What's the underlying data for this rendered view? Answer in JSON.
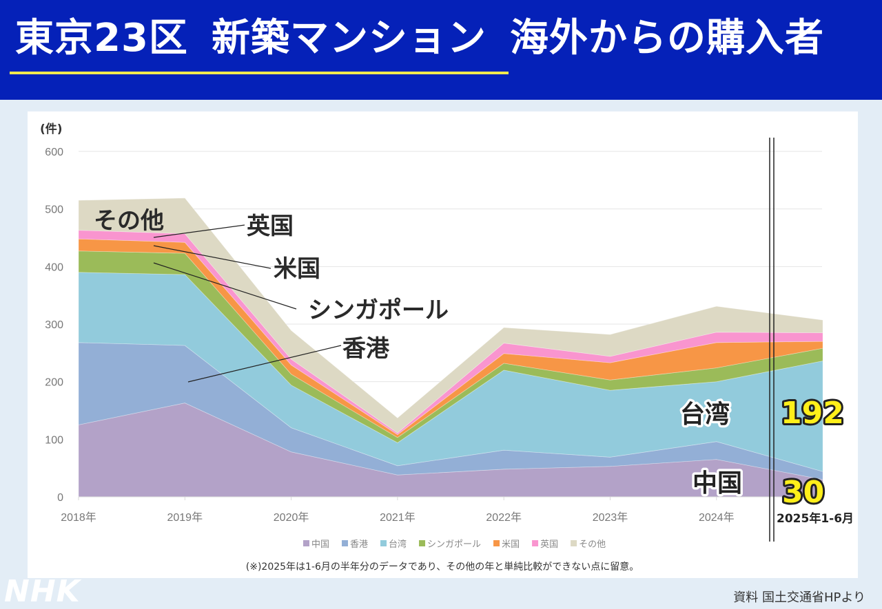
{
  "header": {
    "title_part1": "東京23区",
    "title_part2": "新築マンション",
    "title_part3": "海外からの購入者"
  },
  "footer": {
    "logo": "NHK",
    "source": "資料 国土交通省HPより"
  },
  "chart_data": {
    "type": "area",
    "stacked": true,
    "title": "東京23区 新築マンション 海外からの購入者",
    "ylabel": "(件)",
    "xlabel": "",
    "ylim": [
      0,
      600
    ],
    "yticks": [
      "0",
      "100",
      "200",
      "300",
      "400",
      "500",
      "600"
    ],
    "categories": [
      "2018年",
      "2019年",
      "2020年",
      "2021年",
      "2022年",
      "2023年",
      "2024年",
      "2025年1-6月"
    ],
    "grid": true,
    "legend_position": "bottom",
    "series": [
      {
        "name": "中国",
        "color": "#b3a2c8",
        "values": [
          125,
          163,
          78,
          38,
          48,
          53,
          65,
          30
        ]
      },
      {
        "name": "香港",
        "color": "#93afd6",
        "values": [
          143,
          100,
          42,
          16,
          33,
          16,
          31,
          14
        ]
      },
      {
        "name": "台湾",
        "color": "#92cbdc",
        "values": [
          122,
          123,
          74,
          40,
          139,
          116,
          104,
          192
        ]
      },
      {
        "name": "シンガポール",
        "color": "#9bbb59",
        "values": [
          37,
          37,
          19,
          9,
          12,
          18,
          24,
          22
        ]
      },
      {
        "name": "米国",
        "color": "#f79646",
        "values": [
          21,
          19,
          16,
          5,
          17,
          30,
          44,
          12
        ]
      },
      {
        "name": "英国",
        "color": "#f995cf",
        "values": [
          15,
          15,
          10,
          3,
          18,
          11,
          18,
          15
        ]
      },
      {
        "name": "その他",
        "color": "#ddd9c4",
        "values": [
          52,
          62,
          50,
          26,
          27,
          38,
          45,
          22
        ]
      }
    ],
    "annotations": {
      "callouts": [
        "その他",
        "英国",
        "米国",
        "シンガポール",
        "香港"
      ],
      "taiwan_label": "台湾",
      "china_label": "中国",
      "taiwan_2025_value": "192",
      "china_2025_value": "30",
      "period_label": "2025年1-6月",
      "note": "(※)2025年は1-6月の半年分のデータであり、その他の年と単純比較ができない点に留意。"
    }
  }
}
